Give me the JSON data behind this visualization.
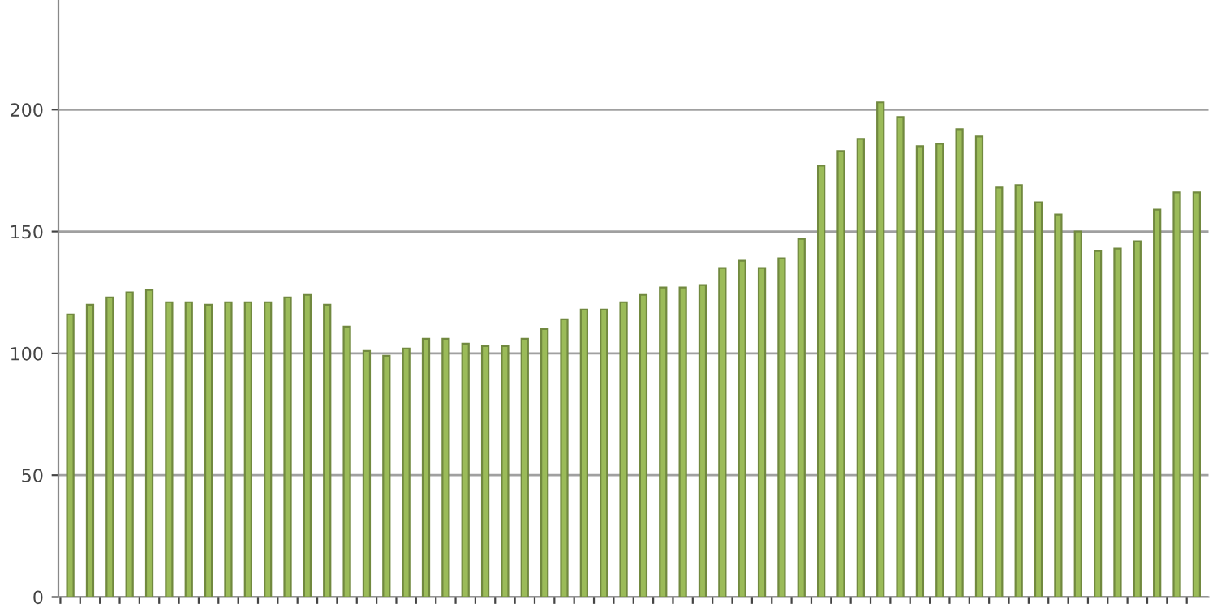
{
  "chart_data": {
    "type": "bar",
    "categories": [
      null,
      null,
      null,
      null,
      null,
      null,
      null,
      null,
      null,
      null,
      null,
      null,
      null,
      null,
      null,
      null,
      null,
      null,
      null,
      null,
      null,
      null,
      null,
      null,
      null,
      null,
      null,
      null,
      null,
      null,
      null,
      null,
      null,
      null,
      null,
      null,
      null,
      null,
      null,
      null,
      null,
      null,
      null,
      null,
      null,
      null,
      null,
      null,
      null,
      null,
      null,
      null,
      null,
      null,
      null,
      null,
      null,
      null
    ],
    "values": [
      116,
      120,
      123,
      125,
      126,
      121,
      121,
      120,
      121,
      121,
      121,
      123,
      124,
      120,
      111,
      101,
      99,
      102,
      106,
      106,
      104,
      103,
      103,
      106,
      110,
      114,
      118,
      118,
      121,
      124,
      127,
      127,
      128,
      135,
      138,
      135,
      139,
      147,
      177,
      183,
      188,
      203,
      197,
      185,
      186,
      192,
      189,
      168,
      169,
      162,
      157,
      150,
      142,
      143,
      146,
      159,
      166,
      166
    ],
    "color": "#9bbb59",
    "ylim": [
      0,
      245
    ],
    "yticks": [
      0,
      50,
      100,
      150,
      200
    ],
    "grid": "y"
  }
}
